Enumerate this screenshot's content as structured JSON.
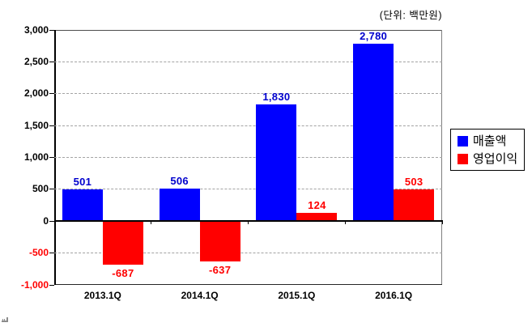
{
  "unit_label": "(단위: 백만원)",
  "legend": [
    {
      "label": "매출액",
      "color": "#0000FF"
    },
    {
      "label": "영업이익",
      "color": "#FF0000"
    }
  ],
  "chart_data": {
    "type": "bar",
    "title": "",
    "xlabel": "",
    "ylabel": "",
    "unit": "(단위: 백만원)",
    "categories": [
      "2013.1Q",
      "2014.1Q",
      "2015.1Q",
      "2016.1Q"
    ],
    "series": [
      {
        "name": "매출액",
        "color": "#0000FF",
        "label_color": "#0000CD",
        "values": [
          501,
          506,
          1830,
          2780
        ],
        "labels": [
          "501",
          "506",
          "1,830",
          "2,780"
        ]
      },
      {
        "name": "영업이익",
        "color": "#FF0000",
        "label_color": "#FF0000",
        "values": [
          -687,
          -637,
          124,
          503
        ],
        "labels": [
          "-687",
          "-637",
          "124",
          "503"
        ]
      }
    ],
    "ylim": [
      -1000,
      3000
    ],
    "ytick_step": 500,
    "yticks": [
      {
        "label": "3,000",
        "value": 3000,
        "color": "#000000",
        "grid": false
      },
      {
        "label": "2,500",
        "value": 2500,
        "color": "#000000",
        "grid": true
      },
      {
        "label": "2,000",
        "value": 2000,
        "color": "#000000",
        "grid": true
      },
      {
        "label": "1,500",
        "value": 1500,
        "color": "#000000",
        "grid": true
      },
      {
        "label": "1,000",
        "value": 1000,
        "color": "#000000",
        "grid": true
      },
      {
        "label": "500",
        "value": 500,
        "color": "#000000",
        "grid": true
      },
      {
        "label": "0",
        "value": 0,
        "color": "#000000",
        "grid": false
      },
      {
        "label": "-500",
        "value": -500,
        "color": "#FF0000",
        "grid": true
      },
      {
        "label": "-1,000",
        "value": -1000,
        "color": "#FF0000",
        "grid": false
      }
    ],
    "grid": "dashed",
    "legend_position": "right"
  }
}
